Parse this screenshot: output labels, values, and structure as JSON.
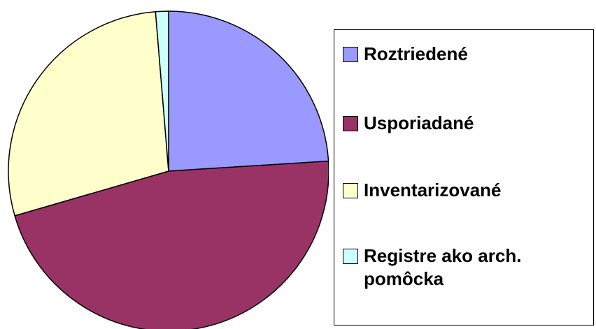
{
  "chart_data": {
    "type": "pie",
    "categories": [
      "Roztriedené",
      "Usporiadané",
      "Inventarizované",
      "Registre ako arch. pomôcka"
    ],
    "values": [
      24,
      46.5,
      28.2,
      1.3
    ],
    "colors": [
      "#9999ff",
      "#993366",
      "#ffffcc",
      "#ccffff"
    ],
    "legend": "right"
  }
}
